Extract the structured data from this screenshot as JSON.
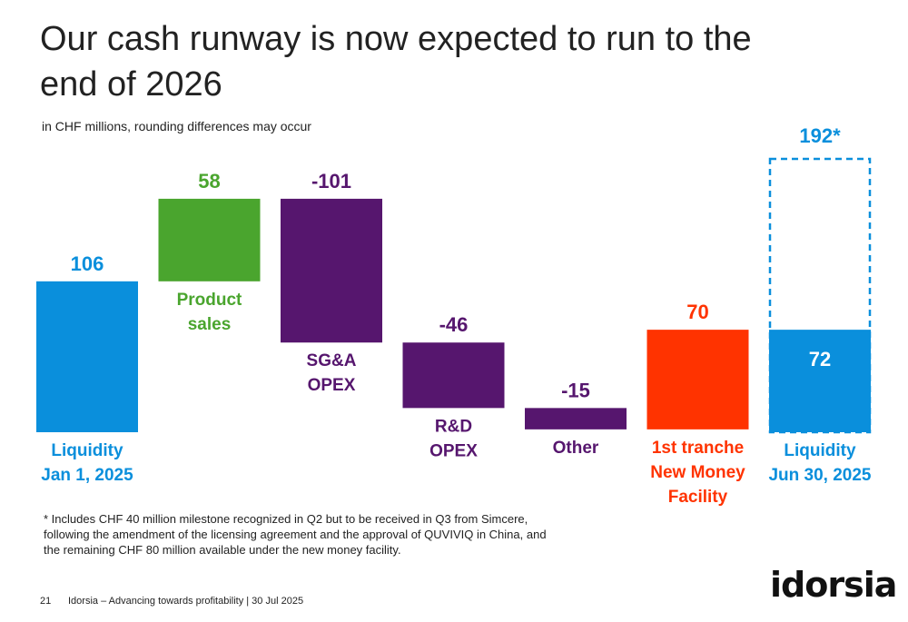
{
  "title": "Our cash runway is now expected to run to the end of 2026",
  "chart_data": {
    "type": "waterfall",
    "subtitle": "in CHF millions, rounding differences may occur",
    "categories": [
      "Liquidity\nJan 1, 2025",
      "Product\nsales",
      "SG&A\nOPEX",
      "R&D\nOPEX",
      "Other",
      "1st tranche\nNew Money\nFacility",
      "Liquidity\nJun 30, 2025"
    ],
    "values": [
      106,
      58,
      -101,
      -46,
      -15,
      70,
      72
    ],
    "measures": [
      "absolute",
      "relative",
      "relative",
      "relative",
      "relative",
      "relative",
      "total"
    ],
    "colors": [
      "#0a8fdc",
      "#4aa52e",
      "#56166e",
      "#56166e",
      "#56166e",
      "#ff3300",
      "#0a8fdc"
    ],
    "projected_total": 192,
    "projected_total_label": "192*"
  },
  "footnote": "* Includes CHF 40 million milestone recognized in Q2 but to be received in Q3 from Simcere, following the amendment of the licensing agreement and the approval of QUVIVIQ in China, and the remaining CHF 80 million available under the new money facility.",
  "footer": {
    "page": "21",
    "text": "Idorsia – Advancing towards profitability | 30 Jul 2025"
  },
  "logo": "idorsia"
}
